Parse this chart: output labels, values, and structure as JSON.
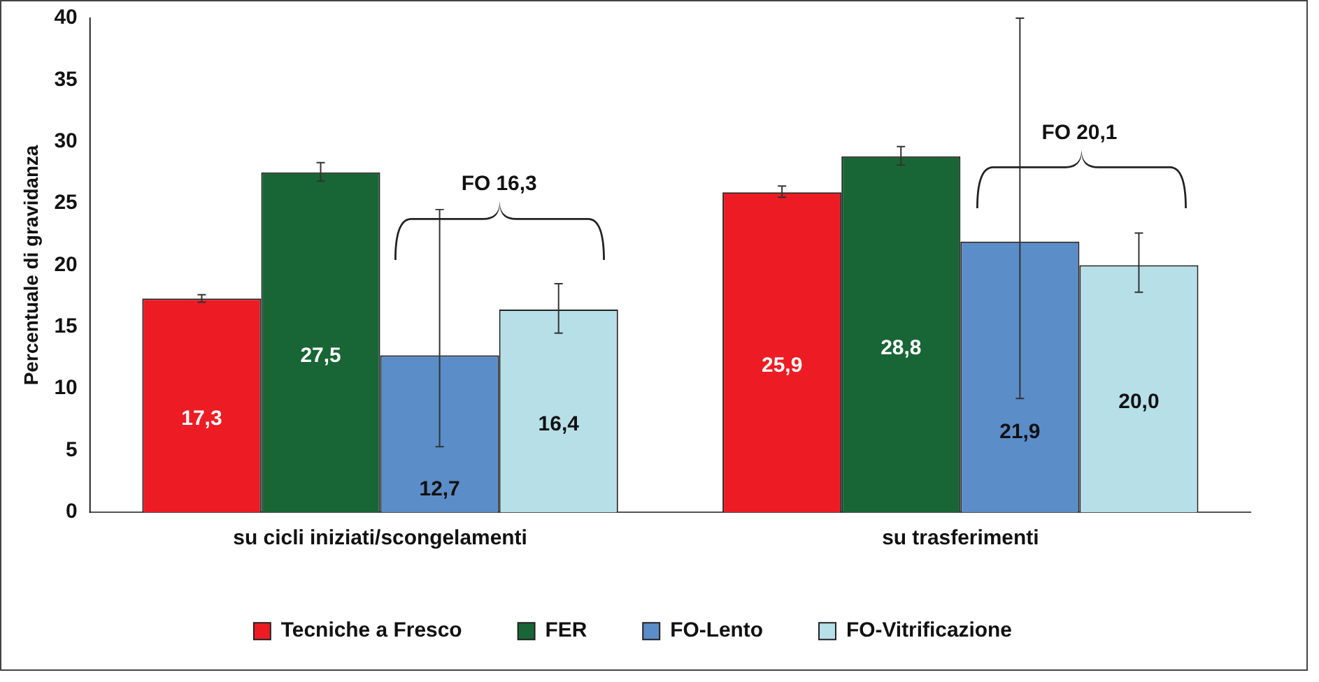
{
  "chart_data": {
    "type": "bar",
    "ylabel": "Percentuale di gravidanza",
    "categories": [
      "su cicli iniziati/scongelamenti",
      "su trasferimenti"
    ],
    "series": [
      {
        "name": "Tecniche a Fresco",
        "color": "#ed1c24",
        "values": [
          17.3,
          25.9
        ],
        "value_labels": [
          "17,3",
          "25,9"
        ],
        "errors": [
          [
            17.0,
            17.6
          ],
          [
            25.5,
            26.4
          ]
        ]
      },
      {
        "name": "FER",
        "color": "#186636",
        "values": [
          27.5,
          28.8
        ],
        "value_labels": [
          "27,5",
          "28,8"
        ],
        "errors": [
          [
            26.8,
            28.3
          ],
          [
            28.1,
            29.6
          ]
        ]
      },
      {
        "name": "FO-Lento",
        "color": "#5b8dc8",
        "values": [
          12.7,
          21.9
        ],
        "value_labels": [
          "12,7",
          "21,9"
        ],
        "errors": [
          [
            5.3,
            24.5
          ],
          [
            9.2,
            40
          ]
        ]
      },
      {
        "name": "FO-Vitrificazione",
        "color": "#b7dfe8",
        "values": [
          16.4,
          20.0
        ],
        "value_labels": [
          "16,4",
          "20,0"
        ],
        "errors": [
          [
            14.5,
            18.5
          ],
          [
            17.8,
            22.6
          ]
        ]
      }
    ],
    "annotations": [
      "FO 16,3",
      "FO 20,1"
    ],
    "ylim": [
      0,
      40
    ],
    "yticks": [
      0,
      5,
      10,
      15,
      20,
      25,
      30,
      35,
      40
    ],
    "grid": false,
    "legend": "bottom"
  }
}
